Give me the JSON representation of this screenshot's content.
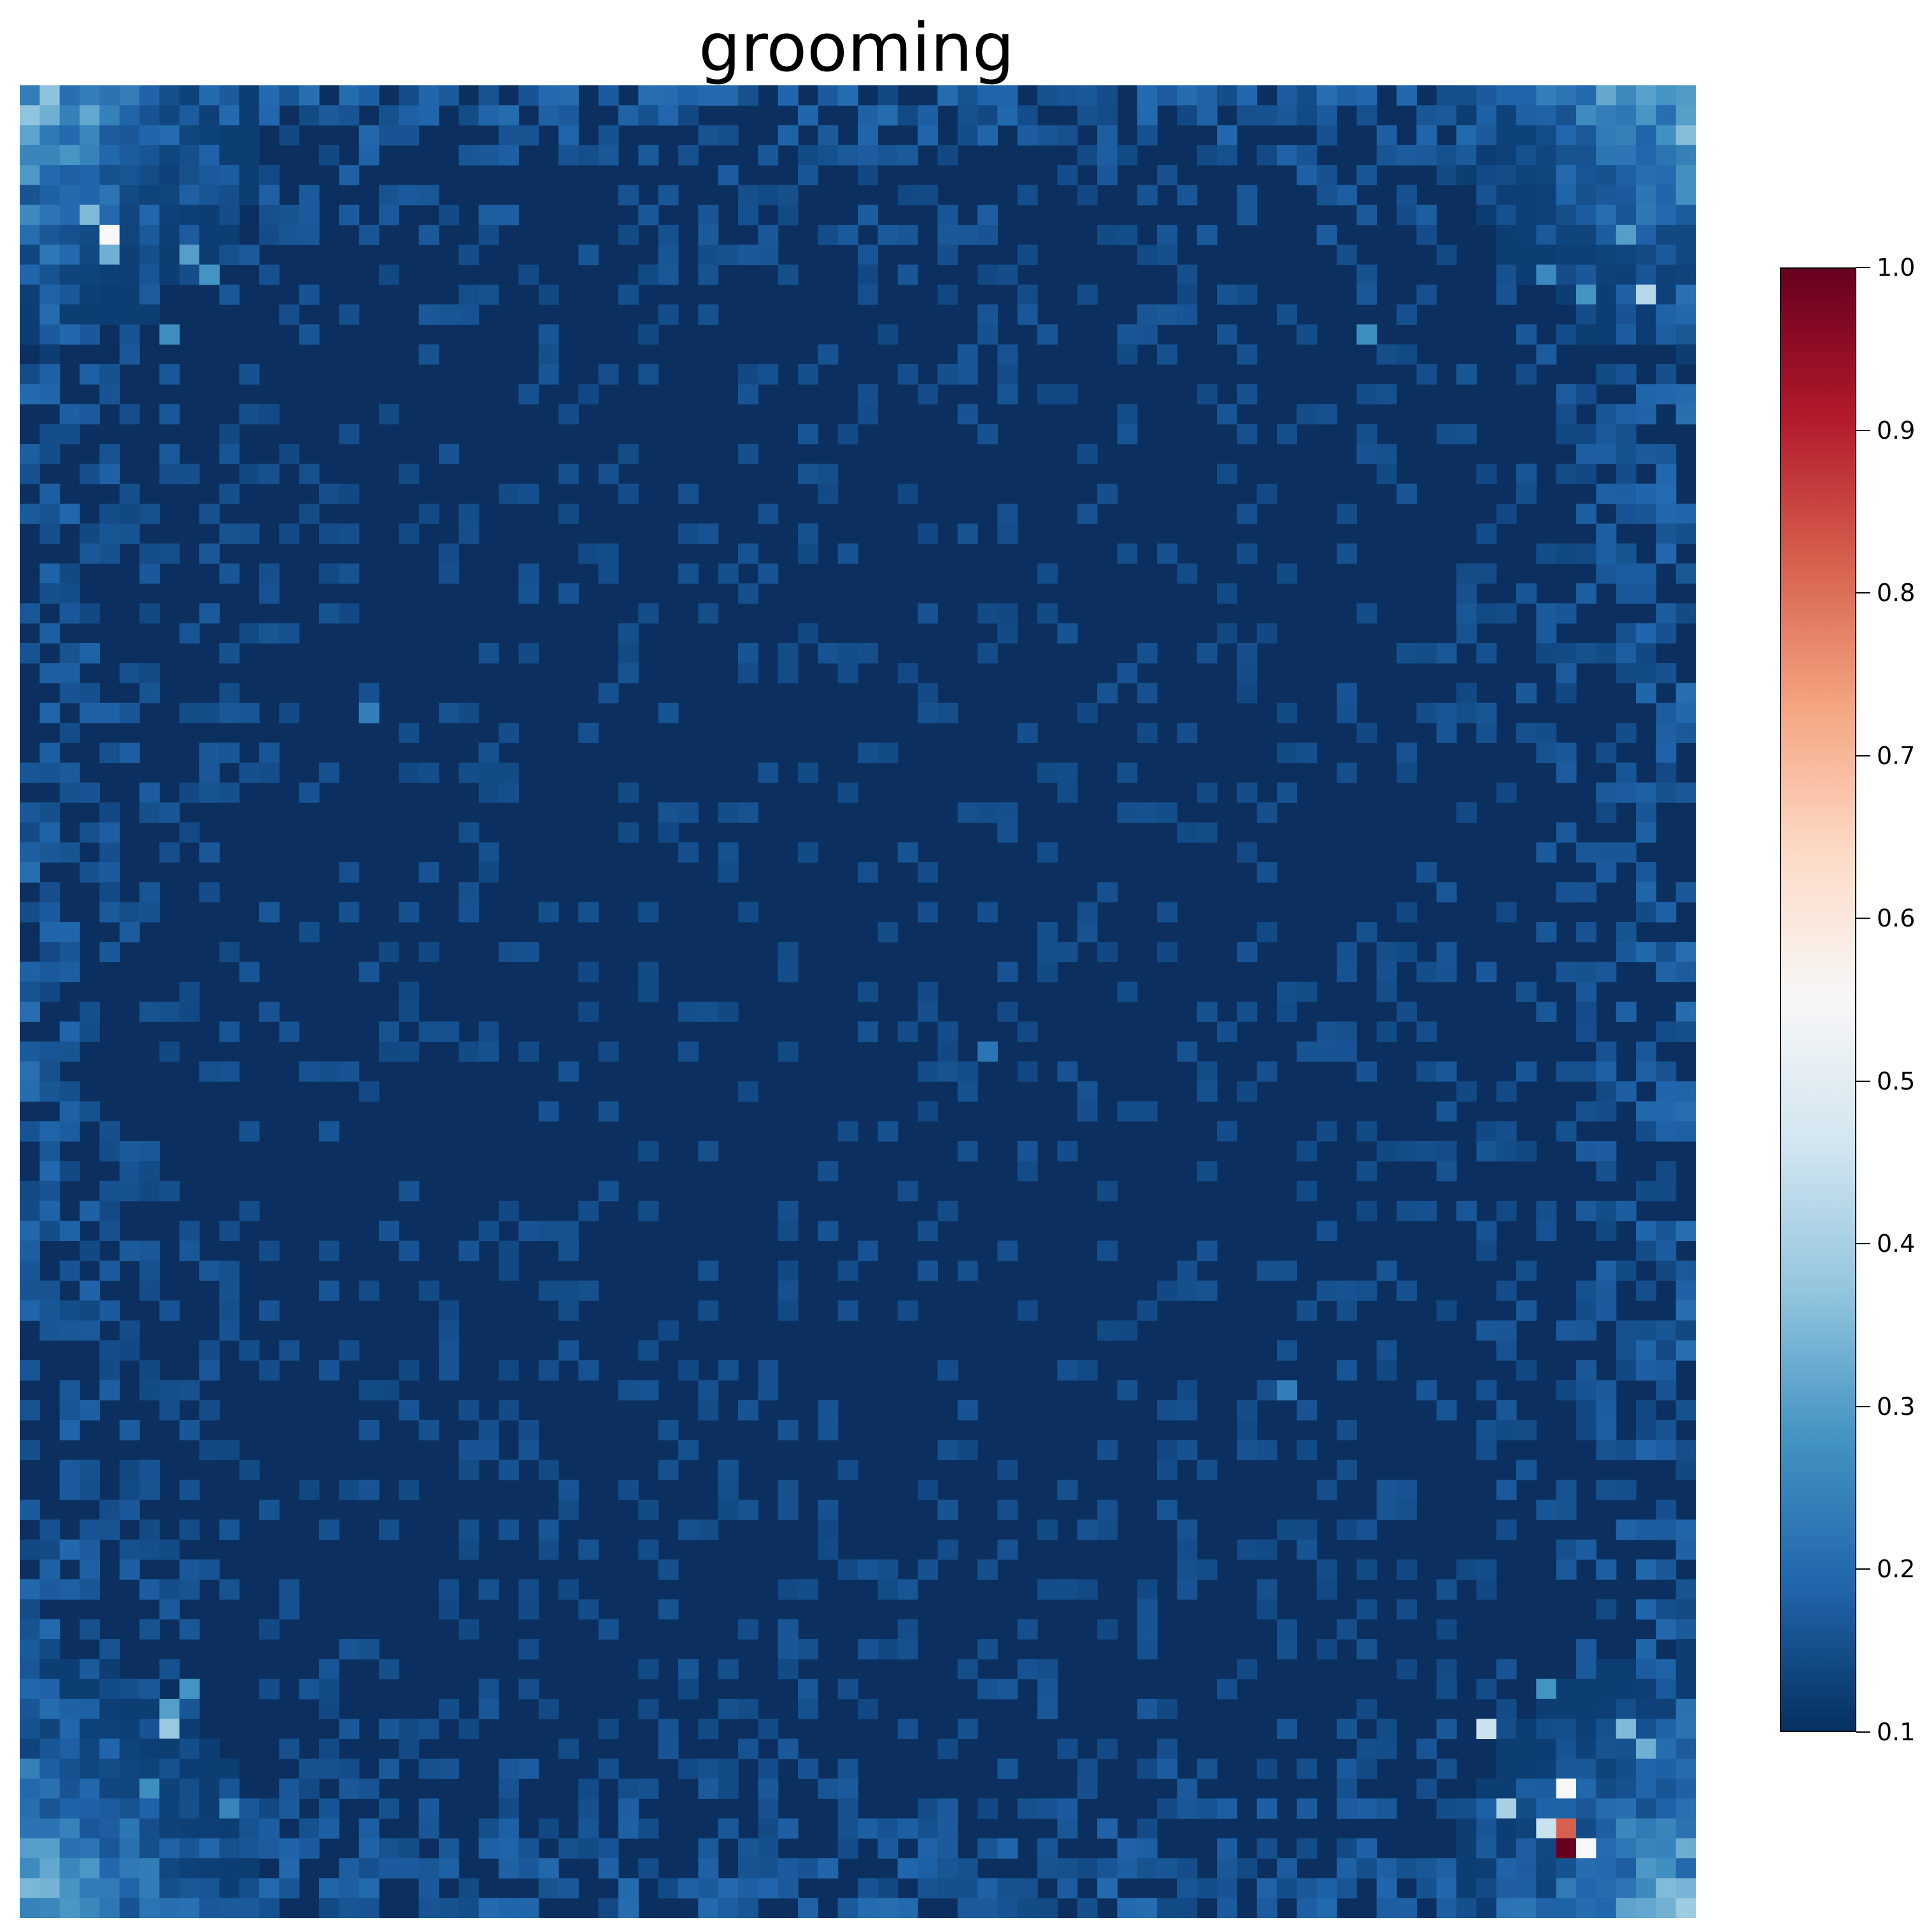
{
  "chart_data": {
    "type": "heatmap",
    "title": "grooming",
    "grid": false,
    "axes_visible": false,
    "colormap": "RdBu_r",
    "colormap_stops": [
      "#053061",
      "#2166ac",
      "#4393c3",
      "#92c5de",
      "#d1e5f0",
      "#f7f7f7",
      "#fddbc7",
      "#f4a582",
      "#d6604d",
      "#b2182b",
      "#67001f"
    ],
    "vmin": 0.1,
    "vmax": 1.0,
    "grid_size": [
      84,
      92
    ],
    "background_value": 0.12,
    "colorbar": {
      "placement": "right",
      "ticks": [
        "1.0",
        "0.9",
        "0.8",
        "0.7",
        "0.6",
        "0.5",
        "0.4",
        "0.3",
        "0.2",
        "0.1"
      ],
      "tick_values": [
        1.0,
        0.9,
        0.8,
        0.7,
        0.6,
        0.5,
        0.4,
        0.3,
        0.2,
        0.1
      ]
    },
    "hotspots": [
      {
        "region": "top-left corner cluster",
        "col": 4,
        "row": 7,
        "value": 0.55
      },
      {
        "region": "top-left corner cluster",
        "col": 3,
        "row": 6,
        "value": 0.35
      },
      {
        "region": "top-left corner cluster",
        "col": 4,
        "row": 8,
        "value": 0.33
      },
      {
        "region": "top-left corner cluster",
        "col": 8,
        "row": 8,
        "value": 0.3
      },
      {
        "region": "top-left corner cluster",
        "col": 9,
        "row": 9,
        "value": 0.28
      },
      {
        "region": "top-left corner cluster",
        "col": 7,
        "row": 12,
        "value": 0.27
      },
      {
        "region": "top-right corner cluster",
        "col": 81,
        "row": 10,
        "value": 0.42
      },
      {
        "region": "top-right corner cluster",
        "col": 80,
        "row": 7,
        "value": 0.3
      },
      {
        "region": "top-right corner cluster",
        "col": 78,
        "row": 10,
        "value": 0.28
      },
      {
        "region": "top-right corner cluster",
        "col": 76,
        "row": 9,
        "value": 0.26
      },
      {
        "region": "top-right corner cluster",
        "col": 67,
        "row": 12,
        "value": 0.27
      },
      {
        "region": "left edge",
        "col": 17,
        "row": 31,
        "value": 0.24
      },
      {
        "region": "center",
        "col": 48,
        "row": 48,
        "value": 0.22
      },
      {
        "region": "right edge",
        "col": 63,
        "row": 65,
        "value": 0.24
      },
      {
        "region": "bottom-left corner cluster",
        "col": 7,
        "row": 82,
        "value": 0.38
      },
      {
        "region": "bottom-left corner cluster",
        "col": 7,
        "row": 81,
        "value": 0.3
      },
      {
        "region": "bottom-left corner cluster",
        "col": 8,
        "row": 80,
        "value": 0.28
      },
      {
        "region": "bottom-left corner cluster",
        "col": 6,
        "row": 85,
        "value": 0.27
      },
      {
        "region": "bottom-left corner cluster",
        "col": 10,
        "row": 86,
        "value": 0.25
      },
      {
        "region": "bottom-right corner cluster",
        "col": 77,
        "row": 88,
        "value": 1.0
      },
      {
        "region": "bottom-right corner cluster",
        "col": 77,
        "row": 87,
        "value": 0.82
      },
      {
        "region": "bottom-right corner cluster",
        "col": 77,
        "row": 85,
        "value": 0.55
      },
      {
        "region": "bottom-right corner cluster",
        "col": 78,
        "row": 88,
        "value": 0.55
      },
      {
        "region": "bottom-right corner cluster",
        "col": 76,
        "row": 87,
        "value": 0.45
      },
      {
        "region": "bottom-right corner cluster",
        "col": 74,
        "row": 86,
        "value": 0.4
      },
      {
        "region": "bottom-right corner cluster",
        "col": 73,
        "row": 82,
        "value": 0.45
      },
      {
        "region": "bottom-right corner cluster",
        "col": 80,
        "row": 82,
        "value": 0.35
      },
      {
        "region": "bottom-right corner cluster",
        "col": 81,
        "row": 83,
        "value": 0.33
      },
      {
        "region": "bottom-right corner cluster",
        "col": 76,
        "row": 80,
        "value": 0.28
      }
    ]
  }
}
